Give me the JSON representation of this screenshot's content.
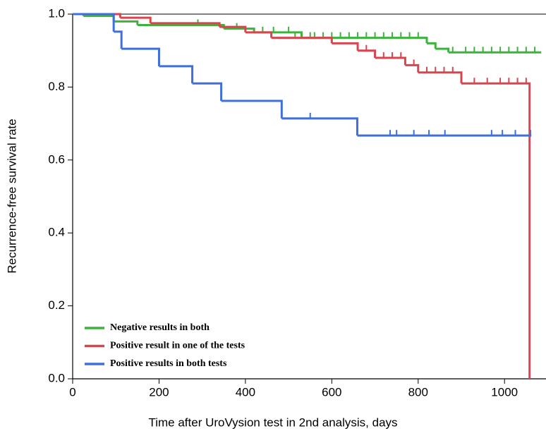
{
  "chart_data": {
    "type": "step",
    "x_label": "Time after UroVysion test in 2nd analysis, days",
    "y_label": "Recurrence-free survival rate",
    "xlim": [
      0,
      1096
    ],
    "ylim": [
      0,
      1
    ],
    "xticks": [
      0,
      200,
      400,
      600,
      800,
      1000
    ],
    "yticks": [
      {
        "value": 0,
        "label": "0.0"
      },
      {
        "value": 0.2,
        "label": "0.2"
      },
      {
        "value": 0.4,
        "label": "0.4"
      },
      {
        "value": 0.6,
        "label": "0.6"
      },
      {
        "value": 0.8,
        "label": "0.8"
      },
      {
        "value": 1,
        "label": "1.0"
      }
    ],
    "legend": "lower left",
    "series": [
      {
        "name": "Negative results in both",
        "color": "#3db33d",
        "x": [
          0,
          25,
          95,
          150,
          350,
          420,
          530,
          820,
          840,
          870,
          1085
        ],
        "values": [
          1.0,
          0.995,
          0.98,
          0.97,
          0.96,
          0.95,
          0.935,
          0.92,
          0.905,
          0.895,
          0.895
        ],
        "censored": {
          "x": [
            290,
            380,
            440,
            465,
            500,
            515,
            550,
            560,
            580,
            600,
            620,
            640,
            660,
            680,
            700,
            720,
            740,
            760,
            780,
            800,
            880,
            910,
            930,
            950,
            970,
            990,
            1010,
            1030,
            1050,
            1070
          ],
          "values": [
            0.97,
            0.96,
            0.95,
            0.95,
            0.95,
            0.935,
            0.935,
            0.935,
            0.935,
            0.935,
            0.935,
            0.935,
            0.935,
            0.935,
            0.935,
            0.935,
            0.935,
            0.935,
            0.935,
            0.935,
            0.895,
            0.895,
            0.895,
            0.895,
            0.895,
            0.895,
            0.895,
            0.895,
            0.895,
            0.895
          ]
        }
      },
      {
        "name": "Positive result in one of the tests",
        "color": "#d9444f",
        "x": [
          0,
          110,
          180,
          340,
          400,
          460,
          600,
          660,
          700,
          770,
          800,
          900,
          1058
        ],
        "values": [
          1.0,
          0.99,
          0.975,
          0.965,
          0.95,
          0.935,
          0.92,
          0.9,
          0.88,
          0.86,
          0.84,
          0.81,
          0.0
        ],
        "censored": {
          "x": [
            680,
            720,
            740,
            760,
            790,
            820,
            840,
            860,
            880,
            930,
            960,
            990,
            1010,
            1030,
            1050
          ],
          "values": [
            0.9,
            0.88,
            0.88,
            0.88,
            0.86,
            0.84,
            0.84,
            0.84,
            0.84,
            0.81,
            0.81,
            0.81,
            0.81,
            0.81,
            0.81
          ]
        }
      },
      {
        "name": "Positive results in both tests",
        "color": "#3f6fdc",
        "x": [
          0,
          95,
          113,
          200,
          277,
          344,
          484,
          659,
          1062
        ],
        "values": [
          1.0,
          0.952,
          0.905,
          0.857,
          0.81,
          0.762,
          0.714,
          0.667,
          0.667
        ],
        "censored": {
          "x": [
            550,
            735,
            750,
            790,
            825,
            862,
            970,
            995,
            1025,
            1060
          ],
          "values": [
            0.714,
            0.667,
            0.667,
            0.667,
            0.667,
            0.667,
            0.667,
            0.667,
            0.667,
            0.667
          ]
        }
      }
    ]
  }
}
